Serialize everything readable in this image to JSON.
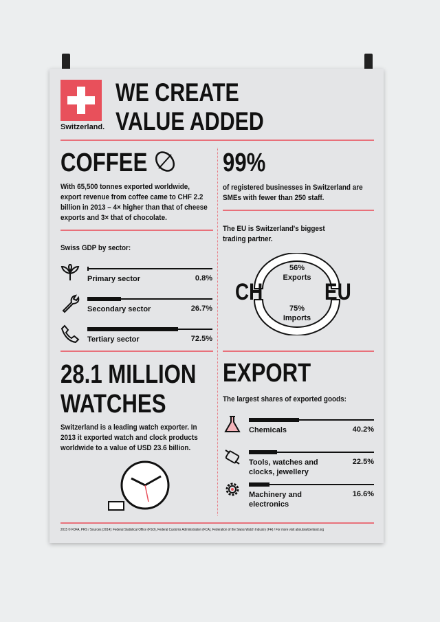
{
  "logo": {
    "text": "Switzerland.",
    "color": "#e8505b"
  },
  "title": [
    "WE CREATE",
    "VALUE ADDED"
  ],
  "coffee": {
    "heading": "COFFEE",
    "icon": "coffee-bean-icon",
    "text": "With 65,500 tonnes exported worldwide, export revenue from coffee came to CHF 2.2 billion in 2013 – 4× higher than that of cheese exports and 3× that of chocolate."
  },
  "gdp": {
    "heading": "Swiss GDP by sector:",
    "rows": [
      {
        "label": "Primary sector",
        "value": "0.8%",
        "pct": 0.8,
        "icon": "plant-icon"
      },
      {
        "label": "Secondary sector",
        "value": "26.7%",
        "pct": 26.7,
        "icon": "wrench-icon"
      },
      {
        "label": "Tertiary sector",
        "value": "72.5%",
        "pct": 72.5,
        "icon": "phone-icon"
      }
    ]
  },
  "sme": {
    "heading": "99%",
    "text": "of registered businesses in Switzerland are SMEs with fewer than 250 staff."
  },
  "eu": {
    "text": "The EU is Switzerland's biggest trading partner.",
    "left": "CH",
    "right": "EU",
    "exports": "56%",
    "exports_label": "Exports",
    "imports": "75%",
    "imports_label": "Imports"
  },
  "watches": {
    "heading": [
      "28.1 MILLION",
      "WATCHES"
    ],
    "text": "Switzerland is a leading watch exporter. In 2013 it exported watch and clock products worldwide to a value of USD 23.6 billion."
  },
  "export": {
    "heading": "EXPORT",
    "subheading": "The largest shares of exported goods:",
    "rows": [
      {
        "label": "Chemicals",
        "value": "40.2%",
        "pct": 40.2,
        "icon": "flask-icon"
      },
      {
        "label": "Tools, watches and clocks, jewellery",
        "value": "22.5%",
        "pct": 22.5,
        "icon": "watch-icon"
      },
      {
        "label": "Machinery and electronics",
        "value": "16.6%",
        "pct": 16.6,
        "icon": "gear-icon"
      }
    ]
  },
  "footer": "2015 © FDFA, PRS / Sources (2014): Federal Statistical Office (FSO), Federal Customs Administration (FCA), Federation of the Swiss Watch Industry (FH) / For more visit aboutswitzerland.org"
}
